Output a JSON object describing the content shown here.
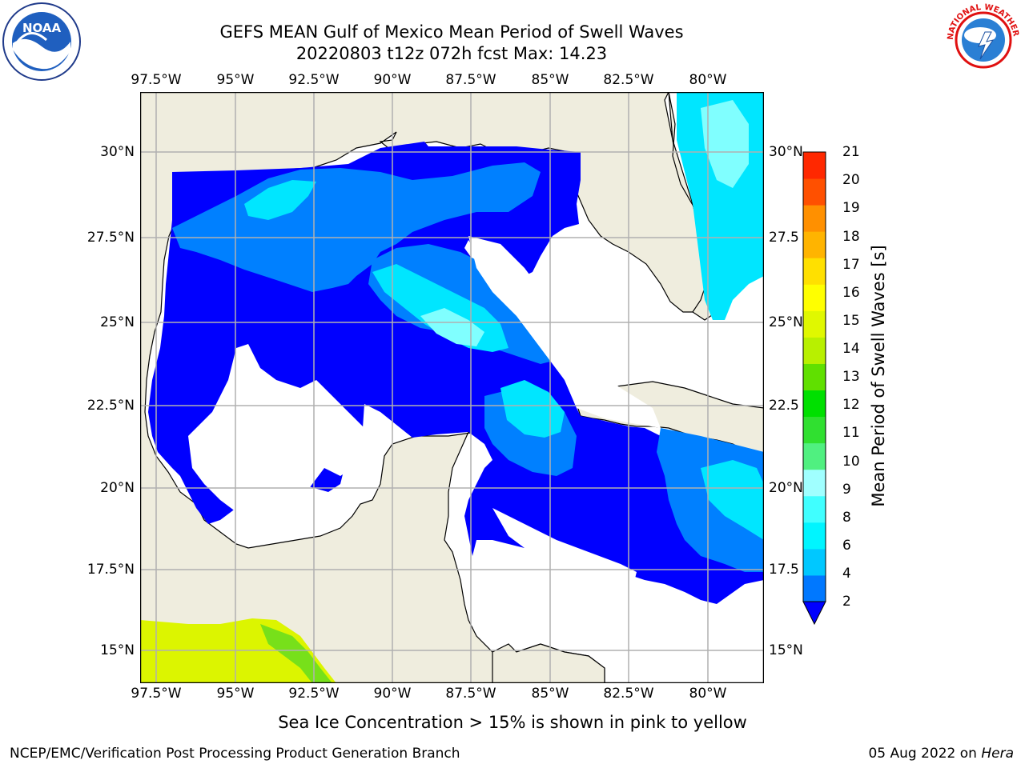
{
  "header": {
    "title_line1": "GEFS MEAN Gulf of Mexico Mean Period of Swell Waves",
    "title_line2": "20220803 t12z 072h fcst   Max: 14.23"
  },
  "logos": {
    "left": {
      "icon": "noaa-logo",
      "text": "NOAA"
    },
    "right": {
      "icon": "nws-logo",
      "text": "NATIONAL WEATHER SERVICE"
    }
  },
  "map": {
    "lon_labels": [
      "97.5°W",
      "95°W",
      "92.5°W",
      "90°W",
      "87.5°W",
      "85°W",
      "82.5°W",
      "80°W"
    ],
    "lat_labels_left": [
      "30°N",
      "27.5°N",
      "25°N",
      "22.5°N",
      "20°N",
      "17.5°N",
      "15°N"
    ],
    "lat_labels_right": [
      "30°N",
      "27.5",
      "25°N",
      "22.5",
      "20°N",
      "17.5",
      "15°N"
    ],
    "colors": {
      "land": "#efedde",
      "coast": "#000000",
      "grid": "#b0b0b0",
      "ocean_2_4": "#0000ff",
      "ocean_blue": "#0080ff",
      "ocean_cyan": "#00e6ff",
      "ocean_light": "#80ffff",
      "ice_yellow": "#dcf500",
      "ice_green": "#77e01a"
    }
  },
  "colorbar": {
    "label": "Mean Period of Swell Waves [s]",
    "ticks": [
      "2",
      "4",
      "6",
      "8",
      "9",
      "10",
      "11",
      "12",
      "13",
      "14",
      "15",
      "16",
      "17",
      "18",
      "19",
      "20",
      "21"
    ],
    "colors": [
      "#0078ff",
      "#00c8ff",
      "#00f5ff",
      "#40ffff",
      "#a0ffff",
      "#50f080",
      "#30e030",
      "#00e000",
      "#60e000",
      "#b8f000",
      "#e0f800",
      "#ffff00",
      "#ffe000",
      "#ffb400",
      "#ff9000",
      "#ff5000",
      "#ff2800",
      "#ff0000"
    ],
    "extend_color": "#0000ff"
  },
  "caption": "Sea Ice Concentration > 15% is shown in pink to yellow",
  "footer": {
    "left": "NCEP/EMC/Verification Post Processing Product Generation Branch",
    "right_date": "05 Aug 2022 on",
    "right_host": "Hera"
  }
}
